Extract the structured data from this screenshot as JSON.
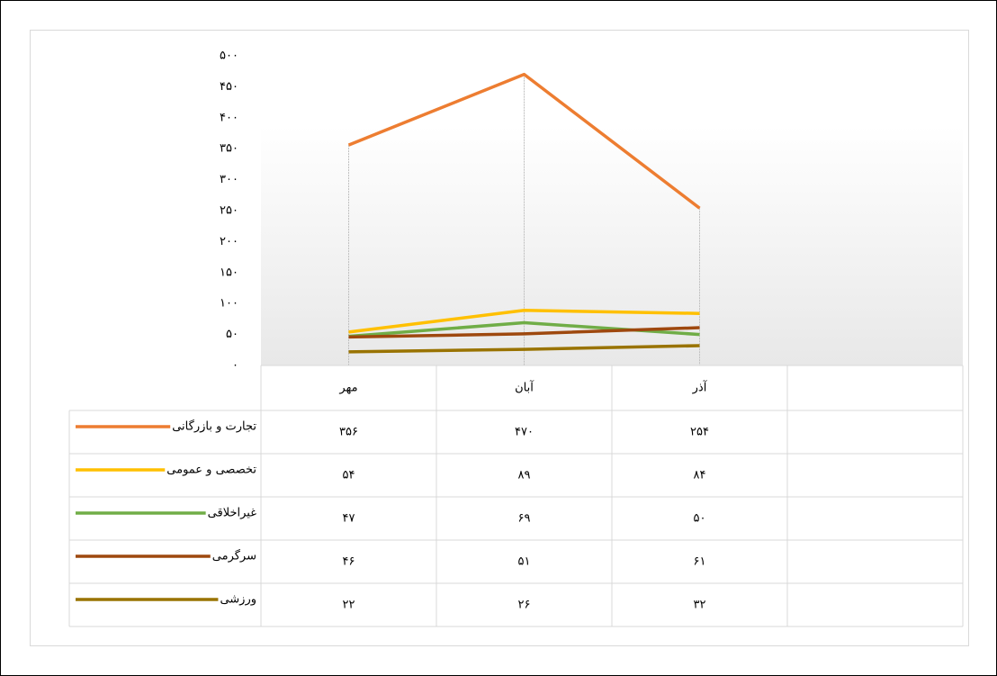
{
  "chart_data": {
    "type": "line",
    "categories": [
      "مهر",
      "آبان",
      "آذر",
      null
    ],
    "series": [
      {
        "name": "تجارت و بازرگانی",
        "color": "#ED7D31",
        "values": [
          356,
          470,
          254,
          null
        ],
        "value_labels": [
          "۳۵۶",
          "۴۷۰",
          "۲۵۴",
          null
        ]
      },
      {
        "name": "تخصصی و عمومی",
        "color": "#FFC000",
        "values": [
          54,
          89,
          84,
          null
        ],
        "value_labels": [
          "۵۴",
          "۸۹",
          "۸۴",
          null
        ]
      },
      {
        "name": "غیراخلاقی",
        "color": "#70AD47",
        "values": [
          47,
          69,
          50,
          null
        ],
        "value_labels": [
          "۴۷",
          "۶۹",
          "۵۰",
          null
        ]
      },
      {
        "name": "سرگرمی",
        "color": "#9E480E",
        "values": [
          46,
          51,
          61,
          null
        ],
        "value_labels": [
          "۴۶",
          "۵۱",
          "۶۱",
          null
        ]
      },
      {
        "name": "ورزشی",
        "color": "#997300",
        "values": [
          22,
          26,
          32,
          null
        ],
        "value_labels": [
          "۲۲",
          "۲۶",
          "۳۲",
          null
        ]
      }
    ],
    "ylim": [
      0,
      500
    ],
    "yticks": [
      {
        "value": 0,
        "label": "۰"
      },
      {
        "value": 50,
        "label": "۵۰"
      },
      {
        "value": 100,
        "label": "۱۰۰"
      },
      {
        "value": 150,
        "label": "۱۵۰"
      },
      {
        "value": 200,
        "label": "۲۰۰"
      },
      {
        "value": 250,
        "label": "۲۵۰"
      },
      {
        "value": 300,
        "label": "۳۰۰"
      },
      {
        "value": 350,
        "label": "۳۵۰"
      },
      {
        "value": 400,
        "label": "۴۰۰"
      },
      {
        "value": 450,
        "label": "۴۵۰"
      },
      {
        "value": 500,
        "label": "۵۰۰"
      }
    ],
    "drop_lines": true,
    "data_table": true
  }
}
